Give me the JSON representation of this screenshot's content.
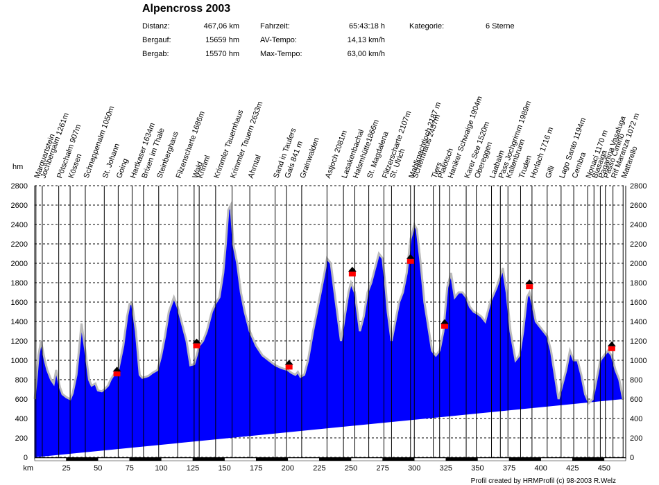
{
  "header": {
    "title": "Alpencross 2003",
    "stats": [
      {
        "label": "Distanz:",
        "value": "467,06 km"
      },
      {
        "label": "Bergauf:",
        "value": "15659 hm"
      },
      {
        "label": "Bergab:",
        "value": "15570 hm"
      },
      {
        "label": "Fahrzeit:",
        "value": "65:43:18 h"
      },
      {
        "label": "AV-Tempo:",
        "value": "14,13 km/h"
      },
      {
        "label": "Max-Tempo:",
        "value": "63,00 km/h"
      },
      {
        "label": "Kategorie:",
        "value": "6 Sterne"
      }
    ]
  },
  "footer": {
    "credit": "Profil created by HRMProfil (c) 98-2003 R.Welz"
  },
  "colors": {
    "profile_fill": "#0000ff",
    "profile_edge": "#bbbbbb",
    "hut_roof": "#000000",
    "hut_body": "#ff0000",
    "grid": "#000000"
  },
  "chart_data": {
    "type": "area",
    "title": "Alpencross 2003",
    "xlabel": "km",
    "ylabel": "hm",
    "xlim": [
      0,
      467.06
    ],
    "ylim": [
      0,
      2800
    ],
    "x_ticks": [
      25,
      50,
      75,
      100,
      125,
      150,
      175,
      200,
      225,
      250,
      275,
      300,
      325,
      350,
      375,
      400,
      425,
      450
    ],
    "y_ticks": [
      0,
      200,
      400,
      600,
      800,
      1000,
      1200,
      1400,
      1600,
      1800,
      2000,
      2200,
      2400,
      2600,
      2800
    ],
    "elevation_profile": {
      "x": [
        0,
        3,
        5,
        8,
        10,
        13,
        15,
        17,
        20,
        22,
        25,
        28,
        30,
        33,
        35,
        37,
        40,
        43,
        45,
        48,
        50,
        53,
        55,
        58,
        60,
        63,
        66,
        70,
        73,
        75,
        77,
        80,
        83,
        85,
        88,
        90,
        93,
        97,
        100,
        103,
        106,
        110,
        113,
        116,
        120,
        123,
        126,
        128,
        130,
        133,
        136,
        140,
        143,
        146,
        149,
        151,
        153,
        155,
        157,
        160,
        163,
        166,
        170,
        175,
        180,
        185,
        190,
        195,
        200,
        203,
        206,
        208,
        210,
        213,
        216,
        220,
        223,
        226,
        229,
        231,
        234,
        237,
        240,
        242,
        245,
        248,
        250,
        253,
        255,
        257,
        260,
        263,
        266,
        269,
        272,
        275,
        277,
        279,
        282,
        285,
        288,
        291,
        294,
        297,
        300,
        302,
        305,
        308,
        311,
        314,
        317,
        320,
        323,
        326,
        329,
        332,
        335,
        338,
        341,
        344,
        347,
        350,
        353,
        356,
        360,
        365,
        370,
        373,
        376,
        380,
        383,
        386,
        389,
        391,
        393,
        396,
        399,
        402,
        405,
        408,
        411,
        414,
        417,
        420,
        423,
        426,
        429,
        432,
        435,
        438,
        441,
        444,
        447,
        450,
        453,
        456,
        459,
        462,
        465,
        467.06
      ],
      "elevation": [
        600,
        1050,
        1200,
        1000,
        900,
        800,
        760,
        900,
        720,
        650,
        620,
        600,
        660,
        850,
        1100,
        1380,
        1100,
        800,
        740,
        760,
        690,
        680,
        700,
        740,
        800,
        860,
        900,
        1150,
        1450,
        1580,
        1580,
        1300,
        850,
        820,
        830,
        840,
        870,
        900,
        1050,
        1250,
        1500,
        1650,
        1550,
        1400,
        1200,
        950,
        960,
        1050,
        1150,
        1200,
        1300,
        1500,
        1590,
        1650,
        1900,
        2200,
        2550,
        2600,
        2200,
        2000,
        1700,
        1500,
        1300,
        1150,
        1050,
        1000,
        950,
        920,
        900,
        870,
        850,
        880,
        830,
        850,
        1000,
        1300,
        1500,
        1700,
        1900,
        2050,
        2000,
        1700,
        1400,
        1200,
        1450,
        1700,
        1800,
        1700,
        1500,
        1300,
        1450,
        1700,
        1800,
        1950,
        2100,
        2050,
        1800,
        1500,
        1200,
        1400,
        1600,
        1700,
        1900,
        2250,
        2400,
        2350,
        2000,
        1600,
        1350,
        1100,
        1050,
        1100,
        1300,
        1750,
        1900,
        1650,
        1700,
        1700,
        1650,
        1550,
        1500,
        1480,
        1450,
        1400,
        1600,
        1750,
        1950,
        1700,
        1300,
        1000,
        1050,
        1300,
        1650,
        1700,
        1600,
        1400,
        1350,
        1300,
        1250,
        1100,
        850,
        600,
        750,
        900,
        1100,
        1000,
        1000,
        850,
        650,
        560,
        600,
        800,
        1000,
        1050,
        1100,
        1050,
        900,
        800,
        600
      ]
    },
    "waypoints": [
      {
        "name": "Marquartstein",
        "km": 1
      },
      {
        "name": "Jochbergalm 1261m",
        "km": 6
      },
      {
        "name": "Pötschalm 907m",
        "km": 19
      },
      {
        "name": "Kössen",
        "km": 28
      },
      {
        "name": "Schnappenalm 1050m",
        "km": 40
      },
      {
        "name": "St. Johann",
        "km": 55
      },
      {
        "name": "Going",
        "km": 66
      },
      {
        "name": "Hartkaser 1634m",
        "km": 77
      },
      {
        "name": "Brixen im Thale",
        "km": 86
      },
      {
        "name": "Steinberghaus",
        "km": 98
      },
      {
        "name": "Filzenscharte 1686m",
        "km": 113
      },
      {
        "name": "Wald",
        "km": 126
      },
      {
        "name": "Krimml",
        "km": 130
      },
      {
        "name": "Krimmler Tauernhaus",
        "km": 143
      },
      {
        "name": "Krimmler Tauern 2633m",
        "km": 156
      },
      {
        "name": "Ahrntal",
        "km": 170
      },
      {
        "name": "Sand in Taufers",
        "km": 190
      },
      {
        "name": "Gais   841 m",
        "km": 199
      },
      {
        "name": "Grainwalden",
        "km": 211
      },
      {
        "name": "Astjoch 2081m",
        "km": 231
      },
      {
        "name": "Lasakenbachal",
        "km": 244
      },
      {
        "name": "Halsmhütte1866m",
        "km": 253
      },
      {
        "name": "St. Magdalena",
        "km": 264
      },
      {
        "name": "Flitzerscharte 2107m",
        "km": 276
      },
      {
        "name": "St. Ulrich",
        "km": 282
      },
      {
        "name": "Mahlknechtjoch 2187 m",
        "km": 297
      },
      {
        "name": "Schlemhaus 2457m",
        "km": 300
      },
      {
        "name": "Tiers",
        "km": 315
      },
      {
        "name": "Plafötsch",
        "km": 320
      },
      {
        "name": "Haniker Schwaige 1904m",
        "km": 328
      },
      {
        "name": "Karer See 1520m",
        "km": 341
      },
      {
        "name": "Obereggen",
        "km": 349
      },
      {
        "name": "Laabalm",
        "km": 361
      },
      {
        "name": "Pass Jochgrimm 1989m",
        "km": 368
      },
      {
        "name": "Kaltenbrunn",
        "km": 374
      },
      {
        "name": "Truden",
        "km": 384
      },
      {
        "name": "Horlach 1716 m",
        "km": 393
      },
      {
        "name": "Gilli",
        "km": 405
      },
      {
        "name": "Lago Santo 1194m",
        "km": 416
      },
      {
        "name": "Cembra",
        "km": 426
      },
      {
        "name": "Nonaci 1170 m",
        "km": 437
      },
      {
        "name": "Biasaiga",
        "km": 442
      },
      {
        "name": "Paganina Vasaluga",
        "km": 447
      },
      {
        "name": "Passo Cimirlo",
        "km": 451
      },
      {
        "name": "Rif Maranza 1072 m",
        "km": 457
      },
      {
        "name": "Mattarello",
        "km": 465
      }
    ],
    "huts": [
      {
        "km": 65,
        "elevation": 870
      },
      {
        "km": 128,
        "elevation": 1160
      },
      {
        "km": 201,
        "elevation": 940
      },
      {
        "km": 251,
        "elevation": 1900
      },
      {
        "km": 297,
        "elevation": 2030
      },
      {
        "km": 324,
        "elevation": 1360
      },
      {
        "km": 391,
        "elevation": 1770
      },
      {
        "km": 456,
        "elevation": 1130
      }
    ],
    "grid": true,
    "legend": "none"
  }
}
